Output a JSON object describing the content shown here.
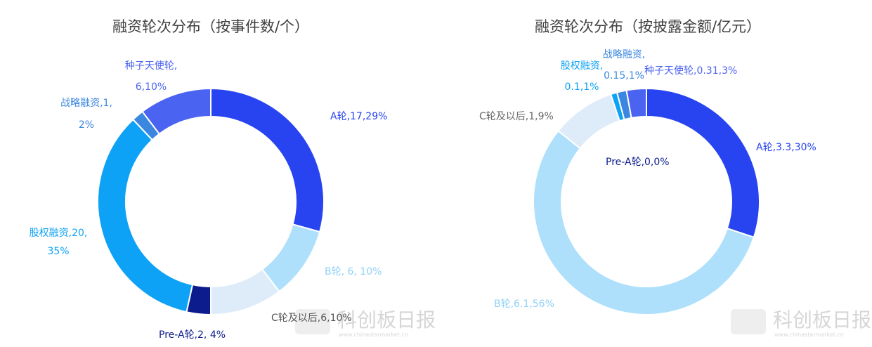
{
  "chart_data": [
    {
      "type": "pie",
      "title": "融资轮次分布（按事件数/个）",
      "slices": [
        {
          "label": "A轮",
          "value": 17,
          "percent": "29%",
          "color": "#2744f0",
          "label_text": "A轮,17,29%"
        },
        {
          "label": "B轮",
          "value": 6,
          "percent": "10%",
          "color": "#aee0fb",
          "label_text": "B轮, 6, 10%"
        },
        {
          "label": "C轮及以后",
          "value": 6,
          "percent": "10%",
          "color": "#deebf8",
          "label_text": "C轮及以后,6,10%"
        },
        {
          "label": "Pre-A轮",
          "value": 2,
          "percent": "4%",
          "color": "#0c1c8c",
          "label_text": "Pre-A轮,2, 4%"
        },
        {
          "label": "股权融资",
          "value": 20,
          "percent": "35%",
          "color": "#0ea2f6",
          "label_text": [
            "股权融资,20,",
            "35%"
          ]
        },
        {
          "label": "战略融资",
          "value": 1,
          "percent": "2%",
          "color": "#3b87e0",
          "label_text": [
            "战略融资,1,",
            "2%"
          ]
        },
        {
          "label": "种子天使轮",
          "value": 6,
          "percent": "10%",
          "color": "#4b63f1",
          "label_text": [
            "种子天使轮,",
            "6,10%"
          ]
        }
      ]
    },
    {
      "type": "pie",
      "title": "融资轮次分布（按披露金额/亿元）",
      "slices": [
        {
          "label": "A轮",
          "value": 3.3,
          "percent": "30%",
          "color": "#2744f0",
          "label_text": "A轮,3.3,30%"
        },
        {
          "label": "B轮",
          "value": 6.1,
          "percent": "56%",
          "color": "#aee0fb",
          "label_text": "B轮,6.1,56%"
        },
        {
          "label": "C轮及以后",
          "value": 1,
          "percent": "9%",
          "color": "#deebf8",
          "label_text": "C轮及以后,1,9%"
        },
        {
          "label": "股权融资",
          "value": 0.1,
          "percent": "1%",
          "color": "#0ea2f6",
          "label_text": [
            "股权融资,",
            "0.1,1%"
          ]
        },
        {
          "label": "战略融资",
          "value": 0.15,
          "percent": "1%",
          "color": "#3b87e0",
          "label_text": [
            "战略融资,",
            "0.15,1%"
          ]
        },
        {
          "label": "种子天使轮",
          "value": 0.31,
          "percent": "3%",
          "color": "#4b63f1",
          "label_text": "种子天使轮,0.31,3%"
        },
        {
          "label": "Pre-A轮",
          "value": 0,
          "percent": "0%",
          "color": "#0c1c8c",
          "label_text": "Pre-A轮,0,0%"
        }
      ]
    }
  ],
  "watermark": {
    "text": "科创板日报",
    "subtext": "www.chinastarmarket.cn"
  }
}
